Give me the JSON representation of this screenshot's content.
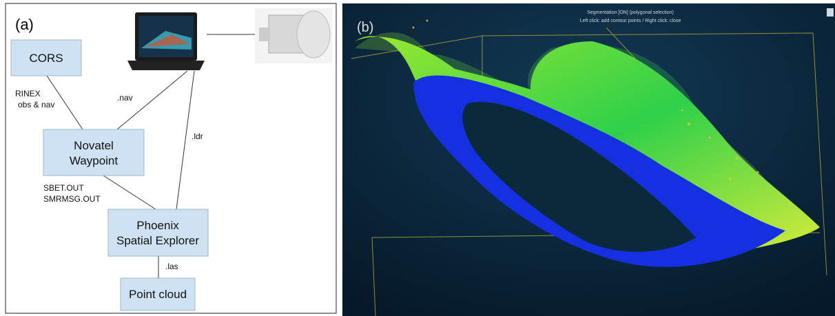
{
  "panel_a": {
    "label": "(a)",
    "nodes": [
      {
        "lines": [
          "CORS"
        ]
      },
      {
        "lines": [
          "Novatel",
          "Waypoint"
        ]
      },
      {
        "lines": [
          "Phoenix",
          "Spatial Explorer"
        ]
      },
      {
        "lines": [
          "Point cloud"
        ]
      }
    ],
    "edges": [
      {
        "lines": [
          "RINEX",
          "obs & nav"
        ]
      },
      {
        "lines": [
          ".nav"
        ]
      },
      {
        "lines": [
          ".ldr"
        ]
      },
      {
        "lines": [
          "SBET.OUT",
          "SMRMSG.OUT"
        ]
      },
      {
        "lines": [
          ".las"
        ]
      }
    ]
  },
  "panel_b": {
    "label": "(b)",
    "status": [
      "Segmentation [ON] (polygonal selection)",
      "Left click: add contour points / Right click: close"
    ]
  }
}
